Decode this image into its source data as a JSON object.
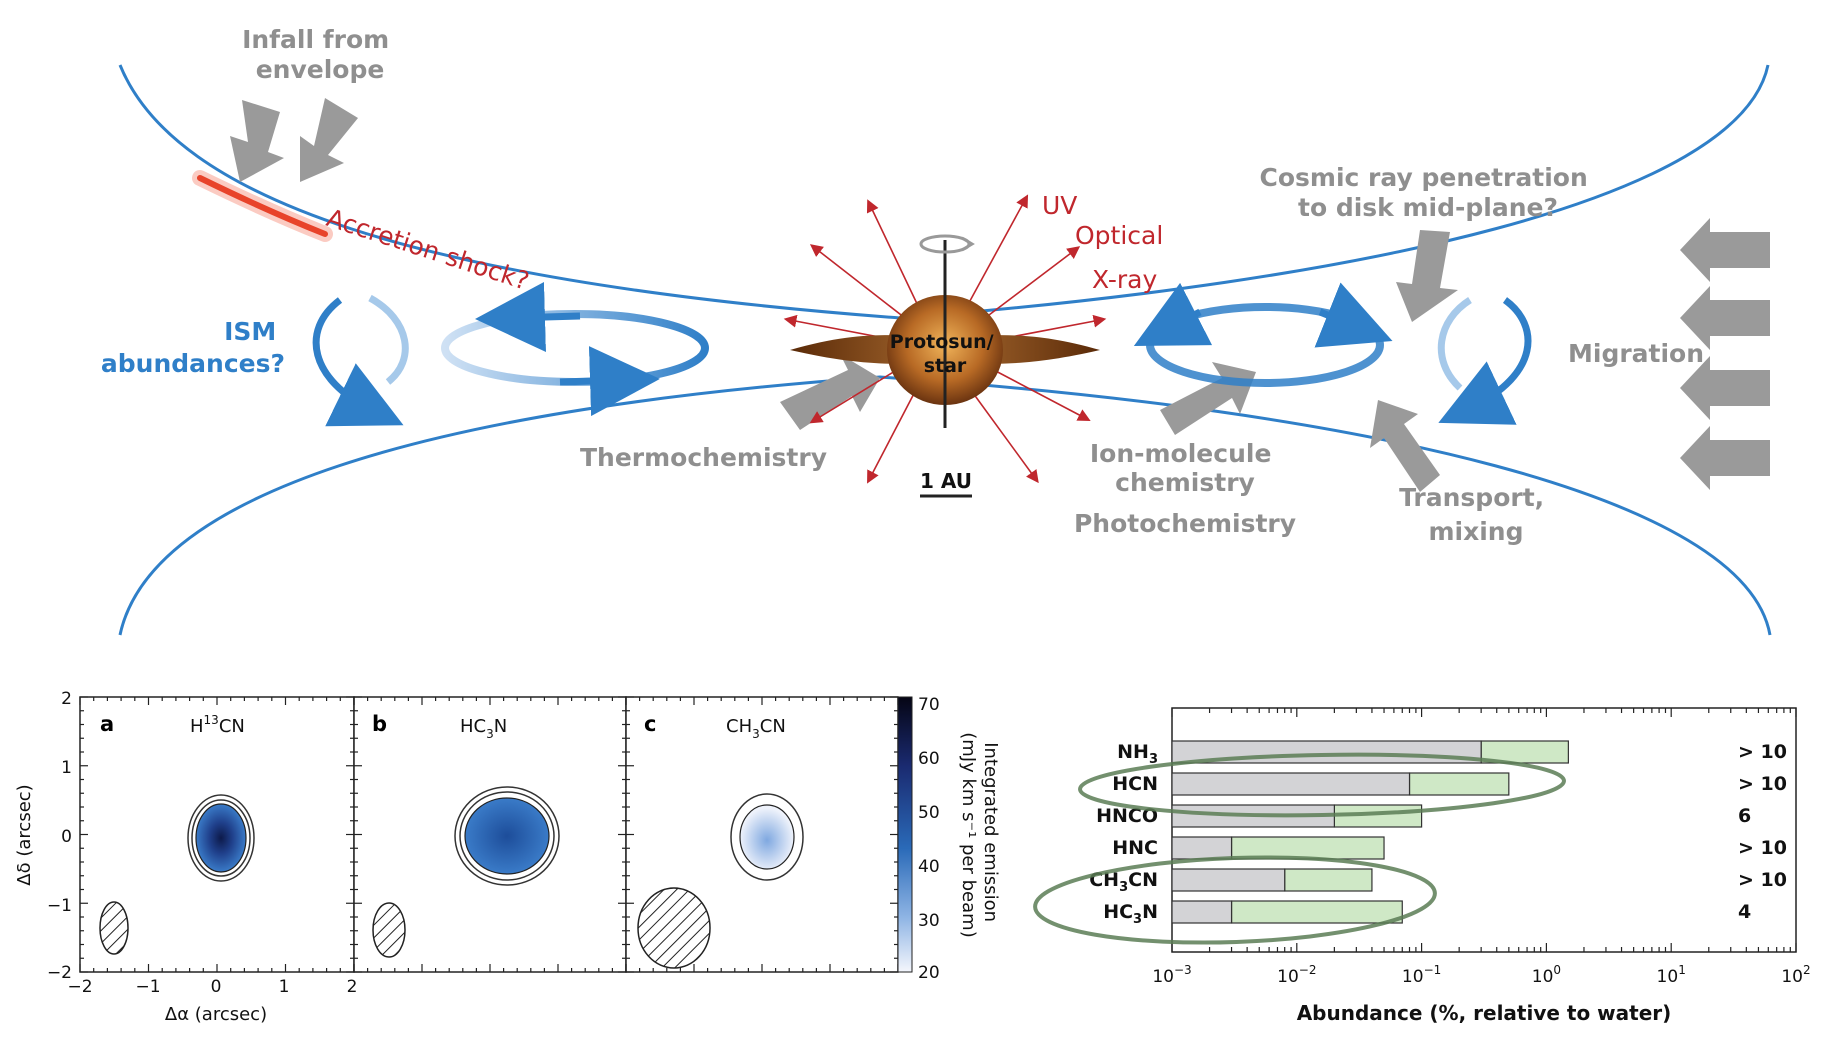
{
  "diagram": {
    "infall": [
      "Infall from",
      "envelope"
    ],
    "accretion_shock": "Accretion shock?",
    "ism": [
      "ISM",
      "abundances?"
    ],
    "uv": "UV",
    "optical": "Optical",
    "xray": "X-ray",
    "protostar": [
      "Protosun/",
      "star"
    ],
    "scale": "1 AU",
    "cosmic": [
      "Cosmic ray penetration",
      "to disk mid-plane?"
    ],
    "migration": "Migration",
    "thermochemistry": "Thermochemistry",
    "ion_molecule": [
      "Ion-molecule",
      "chemistry"
    ],
    "photochemistry": "Photochemistry",
    "transport": [
      "Transport,",
      "mixing"
    ],
    "colors": {
      "disk": "#2f7fc8",
      "shock": "#e8432a",
      "arrow_gray": "#9a9a9a",
      "star": "#8a4a1a",
      "rays": "#c0272d"
    }
  },
  "maps": {
    "panels": [
      {
        "letter": "a",
        "molecule": "H",
        "sup": "13",
        "rest": "CN"
      },
      {
        "letter": "b",
        "molecule": "HC",
        "sub": "3",
        "rest": "N"
      },
      {
        "letter": "c",
        "molecule": "CH",
        "sub": "3",
        "rest": "CN"
      }
    ],
    "yticks": [
      "2",
      "1",
      "0",
      "−1",
      "−2"
    ],
    "xticks": [
      "−2",
      "−1",
      "0",
      "1",
      "2"
    ],
    "ylabel": "Δδ (arcsec)",
    "xlabel": "Δα (arcsec)",
    "colorbar_ticks": [
      "70",
      "60",
      "50",
      "40",
      "30",
      "20"
    ],
    "colorbar_label": [
      "Integrated emission",
      "(mJy km s⁻¹ per beam)"
    ]
  },
  "chart_data": {
    "type": "bar",
    "categories": [
      "NH3",
      "HCN",
      "HNCO",
      "HNC",
      "CH3CN",
      "HC3N"
    ],
    "category_labels": [
      {
        "base": "NH",
        "sub": "3",
        "rest": ""
      },
      {
        "base": "HCN",
        "sub": "",
        "rest": ""
      },
      {
        "base": "HNCO",
        "sub": "",
        "rest": ""
      },
      {
        "base": "HNC",
        "sub": "",
        "rest": ""
      },
      {
        "base": "CH",
        "sub": "3",
        "rest": "CN"
      },
      {
        "base": "HC",
        "sub": "3",
        "rest": "N"
      }
    ],
    "series": [
      {
        "values": [
          0.3,
          0.08,
          0.02,
          0.003,
          0.008,
          0.003
        ],
        "color": "#d3d3d6"
      },
      {
        "values": [
          1.5,
          0.5,
          0.1,
          0.05,
          0.04,
          0.07
        ],
        "color": "#cfe8c6"
      }
    ],
    "ratios": [
      "> 10",
      "> 10",
      "6",
      "> 10",
      "> 10",
      "4"
    ],
    "xscale": "log",
    "xlim": [
      0.001,
      100
    ],
    "xticks": [
      {
        "base": "10",
        "exp": "−3"
      },
      {
        "base": "10",
        "exp": "−2"
      },
      {
        "base": "10",
        "exp": "−1"
      },
      {
        "base": "10",
        "exp": "0"
      },
      {
        "base": "10",
        "exp": "1"
      },
      {
        "base": "10",
        "exp": "2"
      }
    ],
    "xlabel": "Abundance (%, relative to water)"
  }
}
